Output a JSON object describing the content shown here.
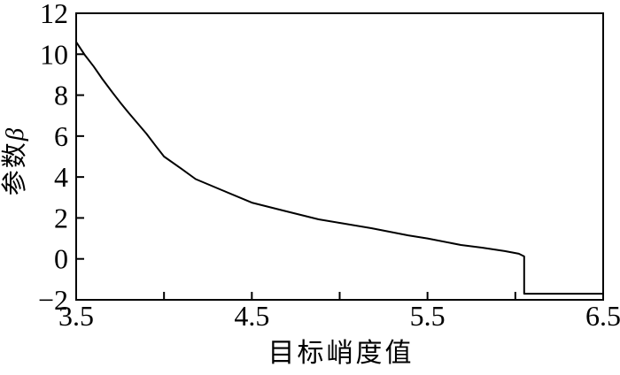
{
  "figure": {
    "background_color": "#ffffff",
    "axis_color": "#000000"
  },
  "chart_data": {
    "type": "line",
    "title": "",
    "xlabel": "目标峭度值",
    "ylabel": "参数β",
    "ylabel_cn": "参数",
    "ylabel_beta": "β",
    "xlim": [
      3.5,
      6.5
    ],
    "ylim": [
      -2,
      12
    ],
    "grid": false,
    "legend": "none",
    "line_color": "#000000",
    "xticks_all": [
      3.5,
      4.0,
      4.5,
      5.0,
      5.5,
      6.0,
      6.5
    ],
    "xticks_labeled": [
      3.5,
      4.5,
      5.5,
      6.5
    ],
    "xtick_labels": [
      "3.5",
      "4.5",
      "5.5",
      "6.5"
    ],
    "yticks": [
      -2,
      0,
      2,
      4,
      6,
      8,
      10,
      12
    ],
    "ytick_labels": [
      "−2",
      "0",
      "2",
      "4",
      "6",
      "8",
      "10",
      "12"
    ],
    "series": [
      {
        "name": "parameter-beta-vs-target-kurtosis",
        "points": [
          [
            3.5,
            10.6
          ],
          [
            3.55,
            9.95
          ],
          [
            3.6,
            9.4
          ],
          [
            3.65,
            8.78
          ],
          [
            3.7,
            8.2
          ],
          [
            3.75,
            7.65
          ],
          [
            3.8,
            7.12
          ],
          [
            3.85,
            6.62
          ],
          [
            3.9,
            6.12
          ],
          [
            3.95,
            5.55
          ],
          [
            4.0,
            5.0
          ],
          [
            4.1,
            4.4
          ],
          [
            4.18,
            3.9
          ],
          [
            4.33,
            3.36
          ],
          [
            4.5,
            2.75
          ],
          [
            4.68,
            2.36
          ],
          [
            4.88,
            1.93
          ],
          [
            5.0,
            1.76
          ],
          [
            5.18,
            1.5
          ],
          [
            5.39,
            1.15
          ],
          [
            5.5,
            1.0
          ],
          [
            5.69,
            0.68
          ],
          [
            5.81,
            0.55
          ],
          [
            5.94,
            0.38
          ],
          [
            6.02,
            0.25
          ],
          [
            6.05,
            0.12
          ],
          [
            6.05,
            -1.7
          ],
          [
            6.1,
            -1.7
          ],
          [
            6.3,
            -1.7
          ],
          [
            6.5,
            -1.7
          ]
        ]
      }
    ]
  }
}
